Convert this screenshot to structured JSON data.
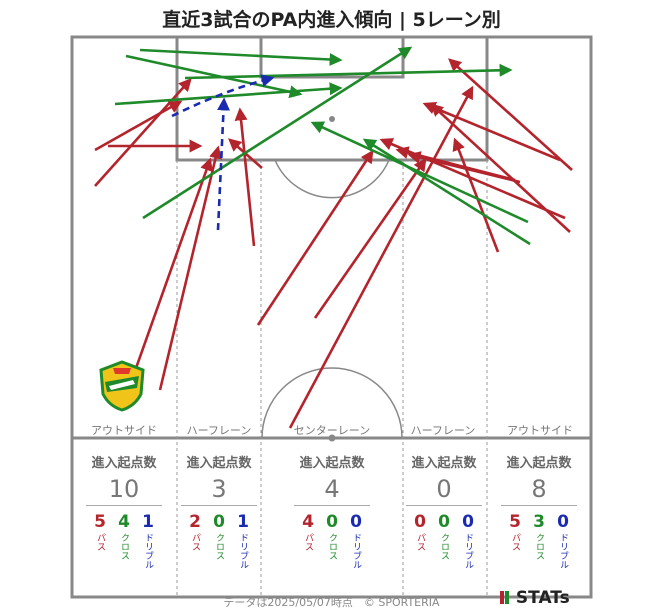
{
  "title": "直近3試合のPA内進入傾向 | 5レーン別",
  "colors": {
    "pass": "#b3242c",
    "cross": "#1f8a2a",
    "dribble": "#1a2bb0",
    "pitch_line": "#888888"
  },
  "lanes": [
    {
      "label": "アウトサイド",
      "head": "進入起点数",
      "total": "10",
      "pass": "5",
      "cross": "4",
      "dribble": "1"
    },
    {
      "label": "ハーフレーン",
      "head": "進入起点数",
      "total": "3",
      "pass": "2",
      "cross": "0",
      "dribble": "1"
    },
    {
      "label": "センターレーン",
      "head": "進入起点数",
      "total": "4",
      "pass": "4",
      "cross": "0",
      "dribble": "0"
    },
    {
      "label": "ハーフレーン",
      "head": "進入起点数",
      "total": "0",
      "pass": "0",
      "cross": "0",
      "dribble": "0"
    },
    {
      "label": "アウトサイド",
      "head": "進入起点数",
      "total": "8",
      "pass": "5",
      "cross": "3",
      "dribble": "0"
    }
  ],
  "type_labels": {
    "pass": "パス",
    "cross": "クロス",
    "dribble": "ドリブル"
  },
  "footer": "データは2025/05/07時点　© SPORTERIA",
  "brand": "STATs",
  "crest_icon": "club-crest"
}
